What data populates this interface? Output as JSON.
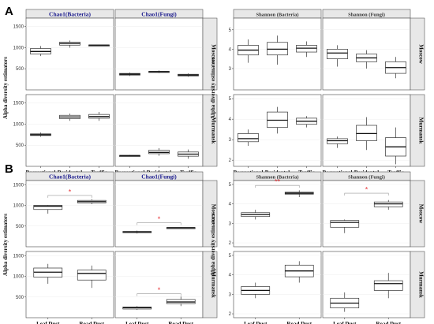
{
  "colors": {
    "strip_bg": "#e8e8e8",
    "strip_title_dark": "#1a1a8c",
    "strip_title_light": "#333333",
    "sig": "#e8383d",
    "box_fill": "#ffffff",
    "box_fill_dark": "#dddddd"
  },
  "sections": [
    "A",
    "B"
  ],
  "ylabel": "Alpha diversity estimators",
  "chart_data": [
    {
      "type": "box",
      "section": "A",
      "facets_cols": [
        "Chao1(Bacteria)",
        "Chao1(Fungi)"
      ],
      "facets_rows": [
        "Moscow",
        "Murmansk"
      ],
      "categories": [
        "Recreational",
        "Residental",
        "Traffic"
      ],
      "yticks": {
        "Moscow": [
          500,
          1000,
          1500
        ],
        "Murmansk": [
          500,
          1000,
          1500
        ]
      },
      "ylim": [
        0,
        1700
      ],
      "boxes": {
        "Chao1(Bacteria)|Moscow": [
          [
            800,
            850,
            910,
            980,
            1040
          ],
          [
            1000,
            1060,
            1100,
            1130,
            1170
          ],
          [
            1050,
            1055,
            1060,
            1065,
            1070
          ]
        ],
        "Chao1(Fungi)|Moscow": [
          [
            330,
            350,
            370,
            390,
            410
          ],
          [
            400,
            420,
            430,
            440,
            460
          ],
          [
            310,
            330,
            350,
            370,
            390
          ]
        ],
        "Chao1(Bacteria)|Murmansk": [
          [
            700,
            730,
            750,
            770,
            800
          ],
          [
            1080,
            1130,
            1170,
            1210,
            1250
          ],
          [
            1080,
            1140,
            1180,
            1230,
            1290
          ]
        ],
        "Chao1(Fungi)|Murmansk": [
          [
            240,
            250,
            255,
            260,
            270
          ],
          [
            250,
            300,
            330,
            380,
            430
          ],
          [
            180,
            240,
            290,
            340,
            400
          ]
        ]
      }
    },
    {
      "type": "box",
      "section": "A",
      "facets_cols": [
        "Shannon (Bacteria)",
        "Shannon (Fungi)"
      ],
      "facets_rows": [
        "Moscow",
        "Murmansk"
      ],
      "categories": [
        "Recreational",
        "Residental",
        "Traffic"
      ],
      "yticks": {
        "Moscow": [
          3,
          4,
          5
        ],
        "Murmansk": [
          2,
          3,
          4,
          5
        ]
      },
      "ylim": {
        "Moscow": [
          1.9,
          5.6
        ],
        "Murmansk": [
          1.7,
          5.2
        ]
      },
      "boxes": {
        "Shannon (Bacteria)|Moscow": [
          [
            3.3,
            3.7,
            3.95,
            4.2,
            4.5
          ],
          [
            3.2,
            3.7,
            4.0,
            4.35,
            4.7
          ],
          [
            3.6,
            3.85,
            4.05,
            4.2,
            4.4
          ]
        ],
        "Shannon (Fungi)|Moscow": [
          [
            3.1,
            3.5,
            3.8,
            4.0,
            4.2
          ],
          [
            3.0,
            3.35,
            3.55,
            3.75,
            3.95
          ],
          [
            2.5,
            2.75,
            3.05,
            3.35,
            3.6
          ]
        ],
        "Shannon (Bacteria)|Murmansk": [
          [
            2.7,
            2.9,
            3.05,
            3.3,
            3.5
          ],
          [
            3.3,
            3.6,
            3.95,
            4.35,
            4.6
          ],
          [
            3.6,
            3.75,
            3.9,
            4.05,
            4.15
          ]
        ],
        "Shannon (Fungi)|Murmansk": [
          [
            2.6,
            2.8,
            2.95,
            3.05,
            3.15
          ],
          [
            2.5,
            2.95,
            3.3,
            3.7,
            4.1
          ],
          [
            1.8,
            2.2,
            2.65,
            3.1,
            3.6
          ]
        ]
      }
    },
    {
      "type": "box",
      "section": "B",
      "facets_cols": [
        "Chao1(Bacteria)",
        "Chao1(Fungi)"
      ],
      "facets_rows": [
        "Moscow",
        "Murmansk"
      ],
      "categories": [
        "Leaf Dust",
        "Road Dust"
      ],
      "yticks": {
        "Moscow": [
          500,
          1000,
          1500
        ],
        "Murmansk": [
          500,
          1000,
          1500
        ]
      },
      "ylim": [
        0,
        1600
      ],
      "boxes": {
        "Chao1(Bacteria)|Moscow": [
          [
            800,
            900,
            980,
            1000,
            1010
          ],
          [
            1030,
            1060,
            1090,
            1120,
            1150
          ]
        ],
        "Chao1(Fungi)|Moscow": [
          [
            320,
            340,
            360,
            370,
            390
          ],
          [
            440,
            450,
            460,
            465,
            470
          ]
        ],
        "Chao1(Bacteria)|Murmansk": [
          [
            820,
            980,
            1100,
            1200,
            1300
          ],
          [
            720,
            910,
            1070,
            1150,
            1260
          ]
        ],
        "Chao1(Fungi)|Murmansk": [
          [
            190,
            210,
            240,
            260,
            280
          ],
          [
            280,
            340,
            380,
            440,
            510
          ]
        ]
      },
      "significance": {
        "Chao1(Bacteria)|Moscow": {
          "label": "*",
          "y": 1240
        },
        "Chao1(Fungi)|Moscow": {
          "label": "*",
          "y": 580
        },
        "Chao1(Fungi)|Murmansk": {
          "label": "*",
          "y": 580
        }
      }
    },
    {
      "type": "box",
      "section": "B",
      "facets_cols": [
        "Shannon (Bacteria)",
        "Shannon (Fungi)"
      ],
      "facets_rows": [
        "Moscow",
        "Murmansk"
      ],
      "categories": [
        "Leaf Dust",
        "Road Dust"
      ],
      "yticks": {
        "Moscow": [
          2,
          3,
          4,
          5
        ],
        "Murmansk": [
          2,
          3,
          4,
          5
        ]
      },
      "ylim": {
        "Moscow": [
          1.8,
          5.2
        ],
        "Murmansk": [
          1.8,
          5.2
        ]
      },
      "boxes": {
        "Shannon (Bacteria)|Moscow": [
          [
            3.2,
            3.35,
            3.45,
            3.55,
            3.7
          ],
          [
            4.35,
            4.5,
            4.55,
            4.6,
            4.7
          ]
        ],
        "Shannon (Fungi)|Moscow": [
          [
            2.5,
            2.8,
            3.05,
            3.15,
            3.2
          ],
          [
            3.7,
            3.85,
            4.0,
            4.1,
            4.2
          ]
        ],
        "Shannon (Bacteria)|Murmansk": [
          [
            2.8,
            3.0,
            3.2,
            3.4,
            3.6
          ],
          [
            3.6,
            3.9,
            4.2,
            4.5,
            4.7
          ]
        ],
        "Shannon (Fungi)|Murmansk": [
          [
            2.1,
            2.3,
            2.55,
            2.8,
            3.1
          ],
          [
            2.8,
            3.2,
            3.55,
            3.7,
            4.1
          ]
        ]
      },
      "significance": {
        "Shannon (Bacteria)|Moscow": {
          "label": "**",
          "y": 4.95
        },
        "Shannon (Fungi)|Moscow": {
          "label": "*",
          "y": 4.55
        }
      }
    }
  ]
}
